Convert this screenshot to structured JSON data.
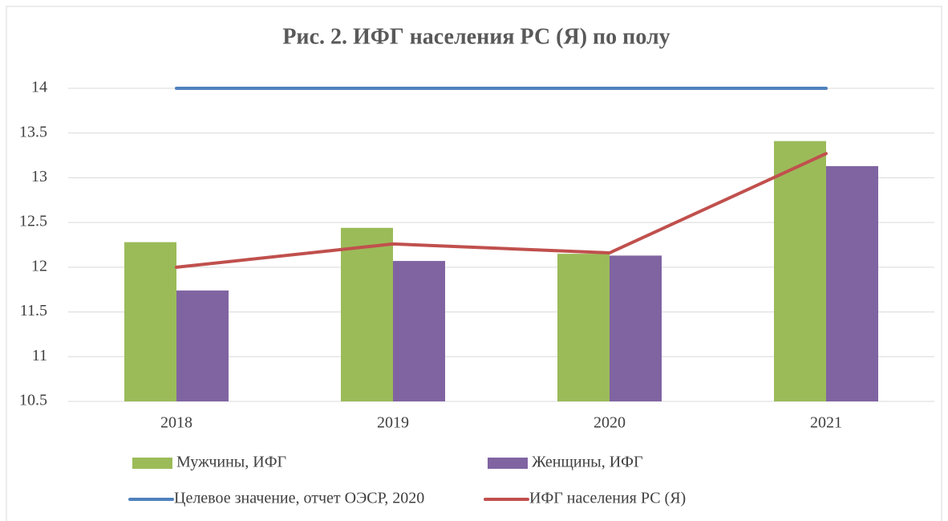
{
  "chart_data": {
    "type": "bar",
    "title": "Рис. 2. ИФГ населения РС (Я) по полу",
    "categories": [
      "2018",
      "2019",
      "2020",
      "2021"
    ],
    "series": [
      {
        "name": "Мужчины, ИФГ",
        "type": "bar",
        "color": "#9bbb59",
        "values": [
          12.28,
          12.44,
          12.15,
          13.41
        ]
      },
      {
        "name": "Женщины, ИФГ",
        "type": "bar",
        "color": "#8064a2",
        "values": [
          11.74,
          12.07,
          12.13,
          13.13
        ]
      },
      {
        "name": "Целевое значение, отчет ОЭСР, 2020",
        "type": "line",
        "color": "#4f81bd",
        "values": [
          14,
          14,
          14,
          14
        ]
      },
      {
        "name": "ИФГ населения РС (Я)",
        "type": "line",
        "color": "#c0504d",
        "values": [
          12.0,
          12.26,
          12.16,
          13.27
        ]
      }
    ],
    "ylim": [
      10.5,
      14
    ],
    "yticks": [
      10.5,
      11,
      11.5,
      12,
      12.5,
      13,
      13.5,
      14
    ],
    "grid": true
  }
}
